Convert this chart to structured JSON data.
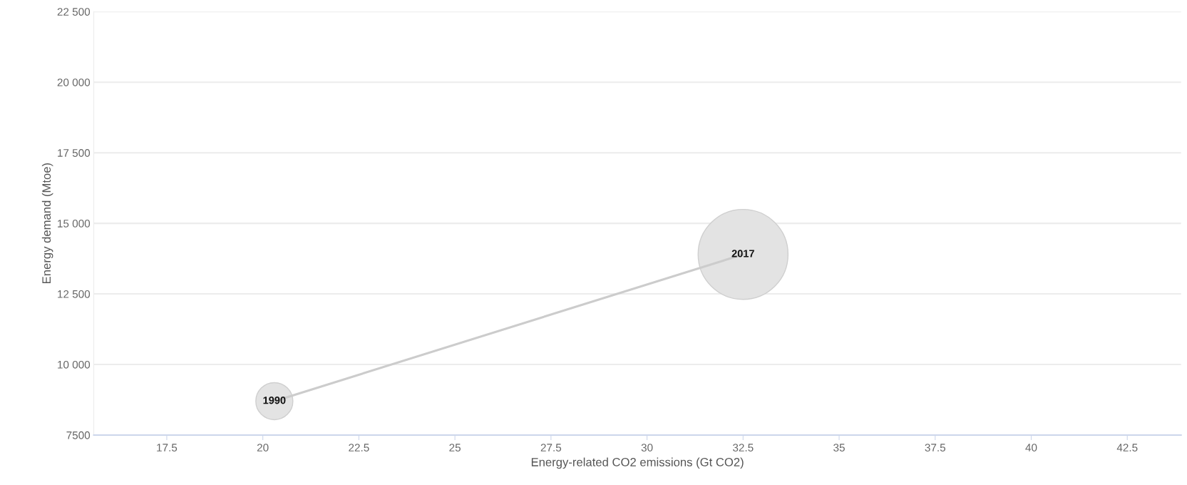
{
  "chart_data": {
    "type": "bubble",
    "xlabel": "Energy-related CO2 emissions (Gt CO2)",
    "ylabel": "Energy demand (Mtoe)",
    "xlim": [
      15.6,
      43.9
    ],
    "xticks": [
      17.5,
      20,
      22.5,
      25,
      27.5,
      30,
      32.5,
      35,
      37.5,
      40,
      42.5
    ],
    "ylim": [
      7500,
      22500
    ],
    "yticks": [
      {
        "value": 7500,
        "label": "7500"
      },
      {
        "value": 10000,
        "label": "10 000"
      },
      {
        "value": 12500,
        "label": "12 500"
      },
      {
        "value": 15000,
        "label": "15 000"
      },
      {
        "value": 17500,
        "label": "17 500"
      },
      {
        "value": 20000,
        "label": "20 000"
      },
      {
        "value": 22500,
        "label": "22 500"
      }
    ],
    "grid": "y",
    "series": [
      {
        "color": "#e3e3e3",
        "line_style": "solid",
        "x": [
          20.3,
          32.5
        ],
        "values": [
          8700,
          13900
        ],
        "sizes": [
          0.17,
          1
        ]
      }
    ],
    "annotations": [
      {
        "text": "1990",
        "x": 20.3,
        "y": 8700
      },
      {
        "text": "2017",
        "x": 32.5,
        "y": 13900
      }
    ]
  }
}
